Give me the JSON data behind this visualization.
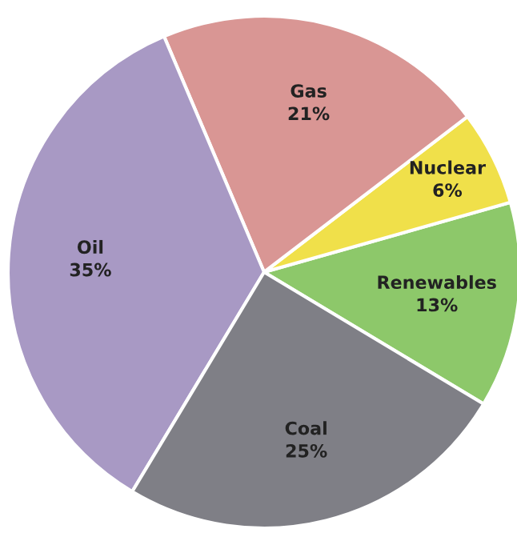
{
  "chart_data": {
    "type": "pie",
    "categories": [
      "Renewables",
      "Nuclear",
      "Gas",
      "Oil",
      "Coal"
    ],
    "values": [
      13,
      6,
      21,
      35,
      25
    ],
    "colors": [
      "#8dc86a",
      "#f0e04a",
      "#d99694",
      "#a899c4",
      "#7f7f86"
    ],
    "value_labels": [
      "13%",
      "6%",
      "21%",
      "35%",
      "25%"
    ],
    "legend": false
  }
}
